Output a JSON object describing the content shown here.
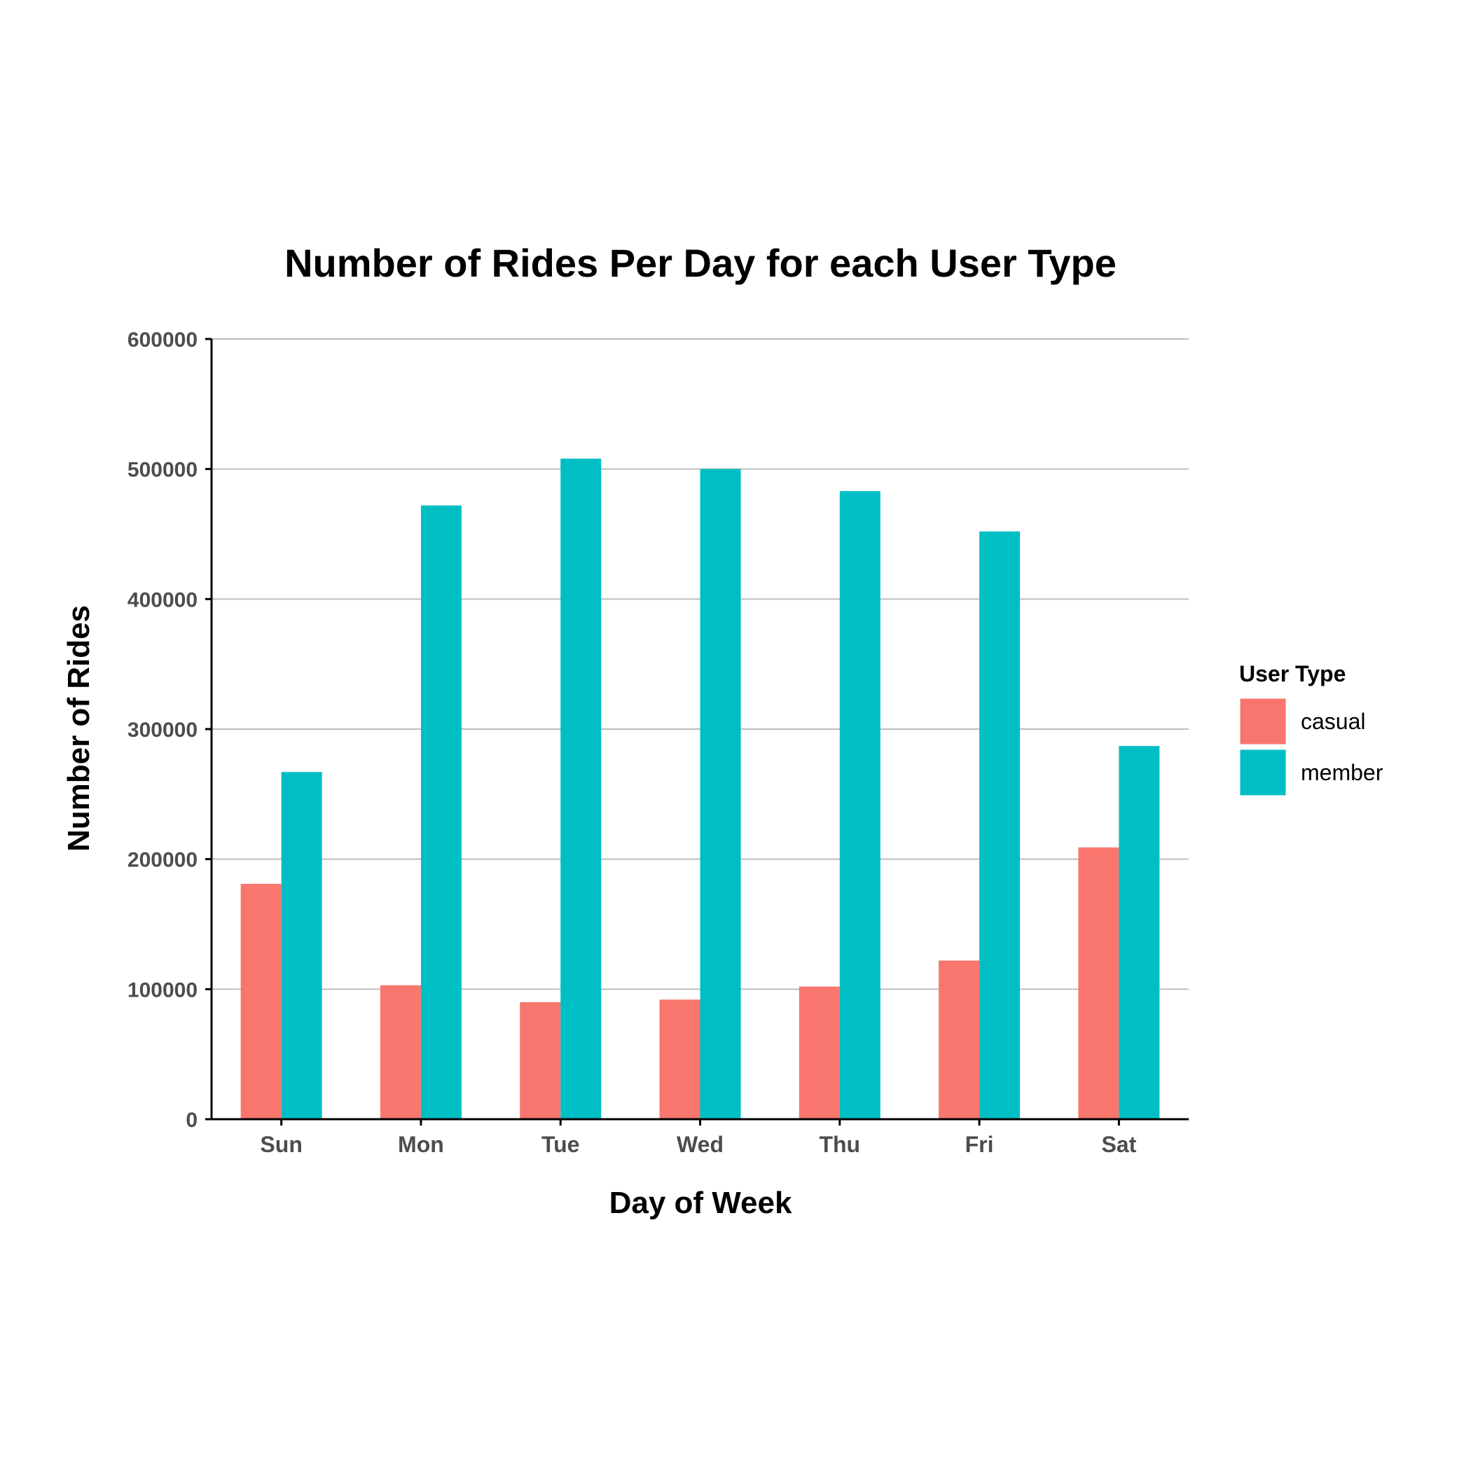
{
  "chart_data": {
    "type": "bar",
    "title": "Number of Rides Per Day for each User Type",
    "xlabel": "Day of Week",
    "ylabel": "Number of Rides",
    "categories": [
      "Sun",
      "Mon",
      "Tue",
      "Wed",
      "Thu",
      "Fri",
      "Sat"
    ],
    "series": [
      {
        "name": "casual",
        "color": "#F8766D",
        "values": [
          181000,
          103000,
          90000,
          92000,
          102000,
          122000,
          209000
        ]
      },
      {
        "name": "member",
        "color": "#00BFC4",
        "values": [
          267000,
          472000,
          508000,
          500000,
          483000,
          452000,
          287000
        ]
      }
    ],
    "ylim": [
      0,
      600000
    ],
    "yticks": [
      0,
      100000,
      200000,
      300000,
      400000,
      500000,
      600000
    ],
    "ytick_labels": [
      "0",
      "100000",
      "200000",
      "300000",
      "400000",
      "500000",
      "600000"
    ],
    "grid": "horizontal",
    "legend": {
      "title": "User Type",
      "position": "right"
    }
  }
}
